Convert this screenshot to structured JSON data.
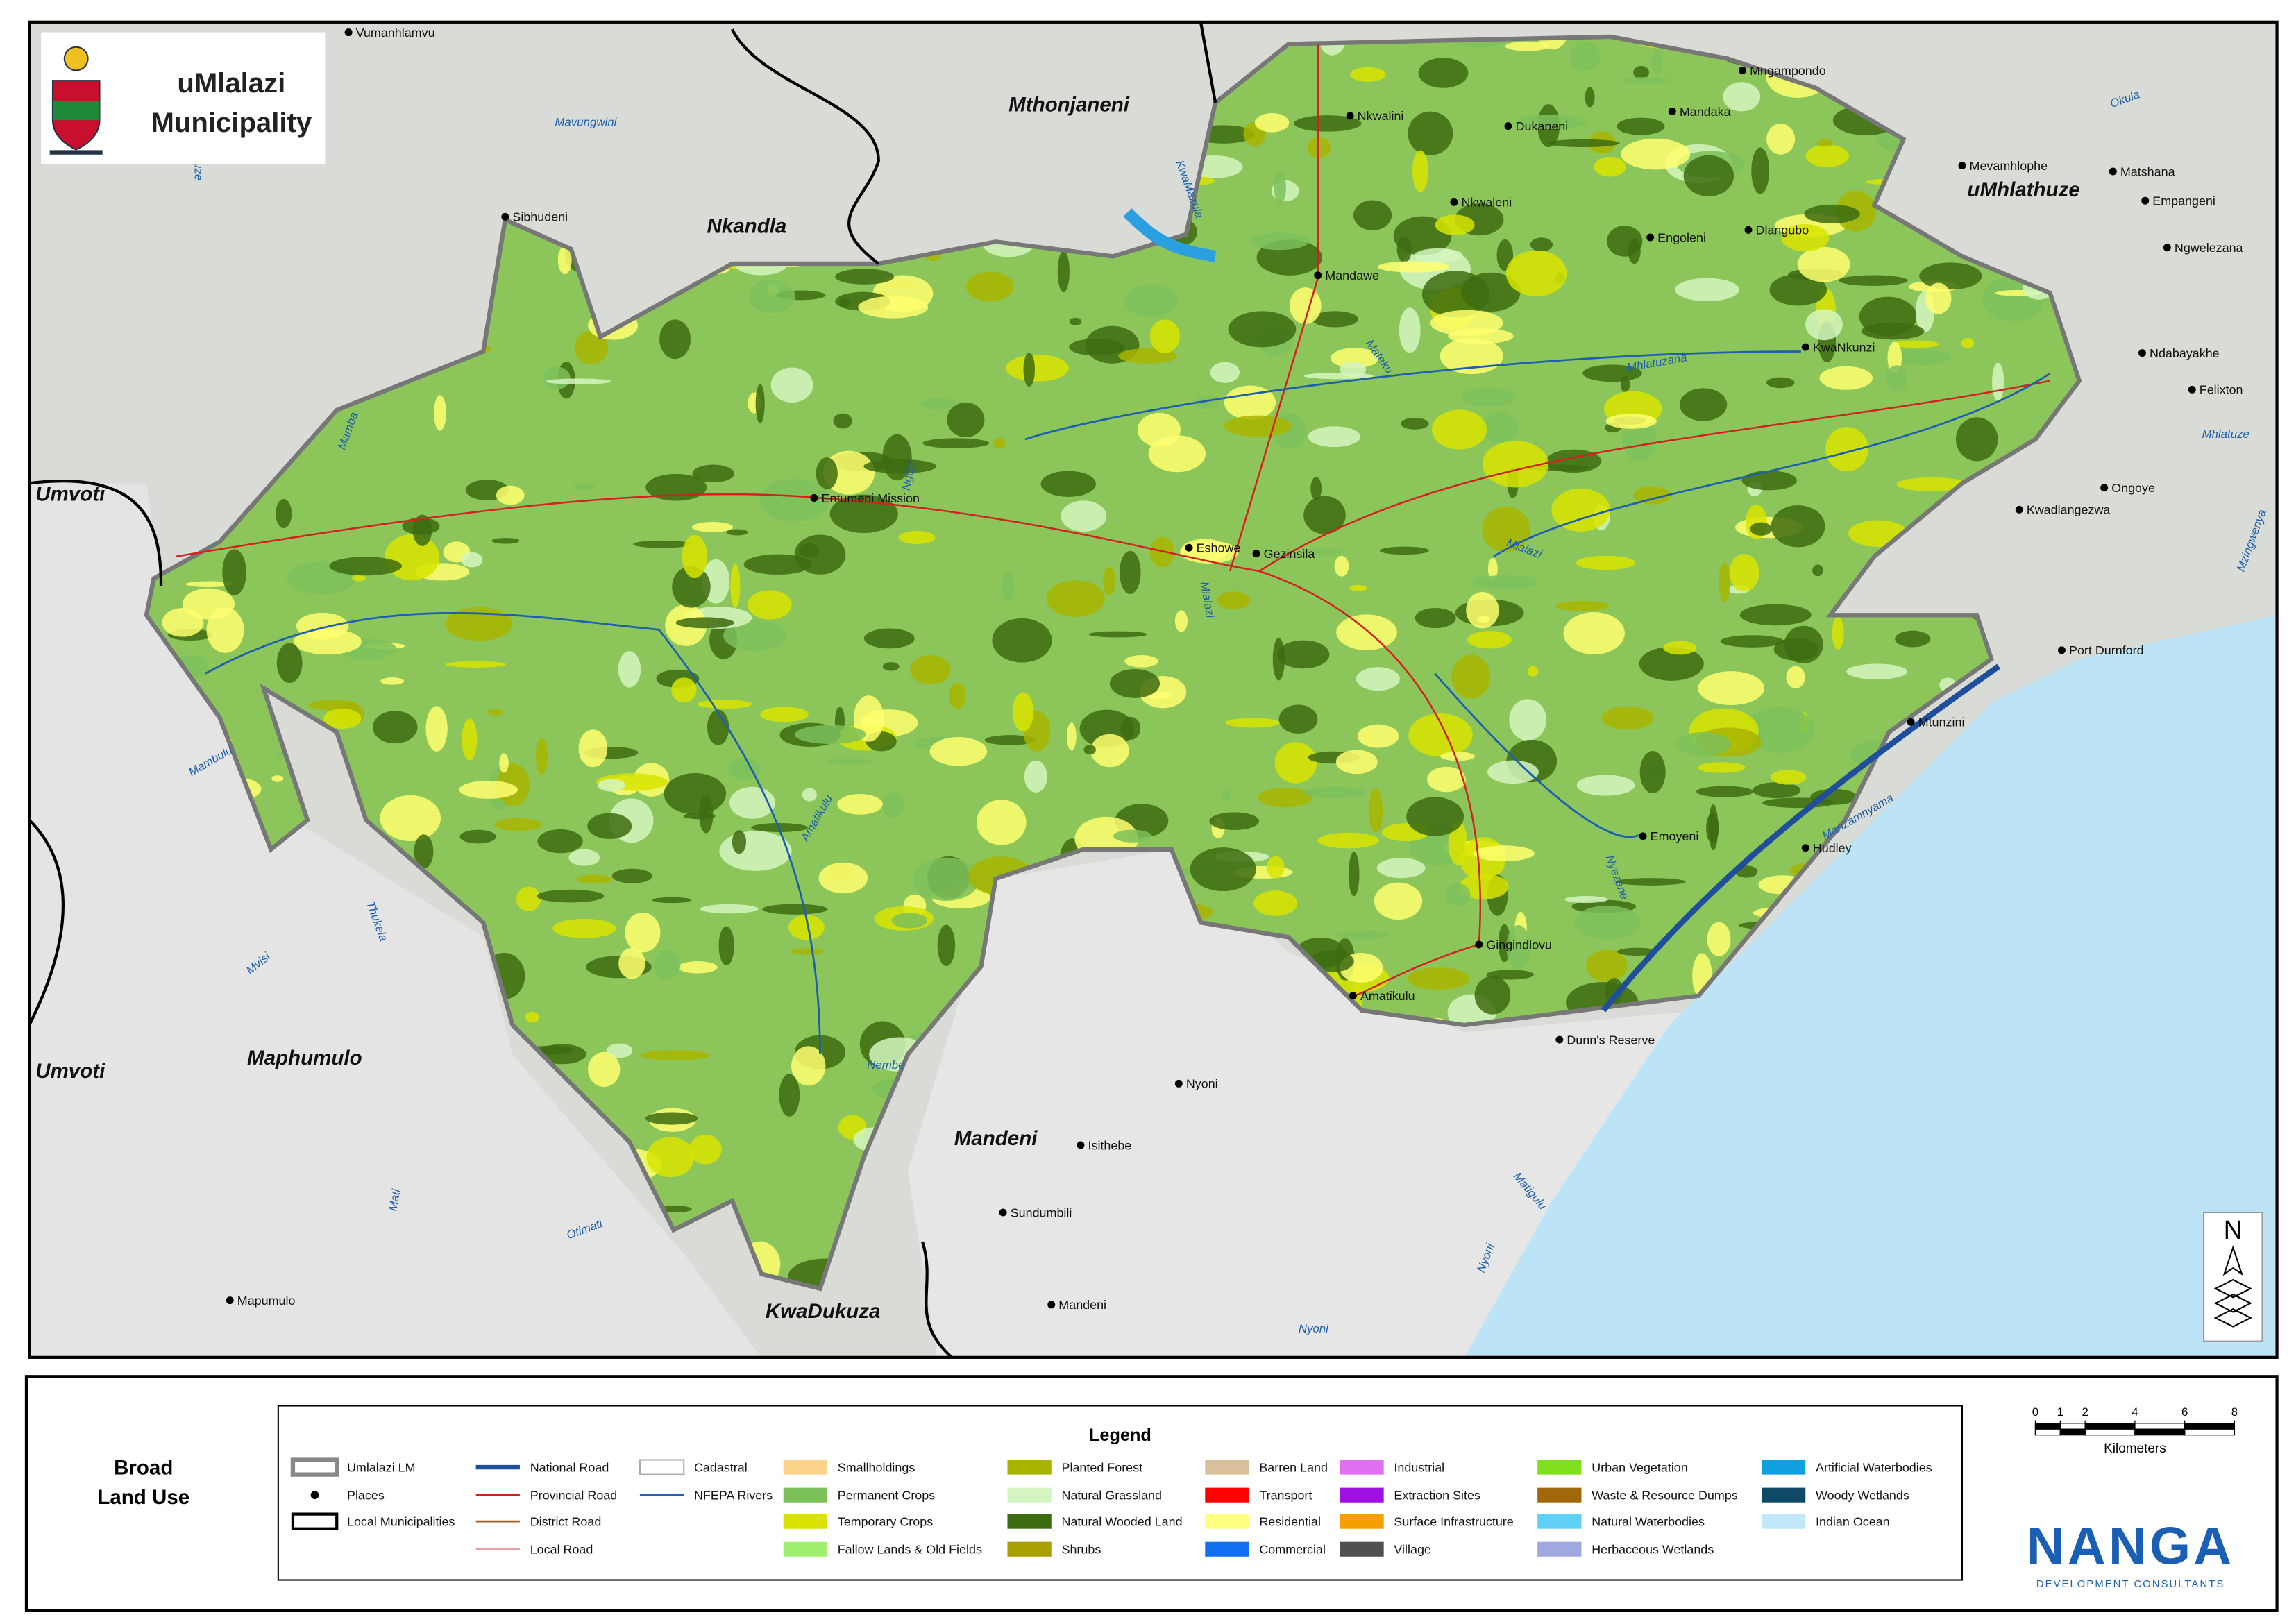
{
  "logo": {
    "title_line1": "uMlalazi",
    "title_line2": "Municipality"
  },
  "map": {
    "municipalities": [
      "Mthonjaneni",
      "Nkandla",
      "uMhlathuze",
      "Umvoti",
      "Umvoti",
      "Maphumulo",
      "Mandeni",
      "KwaDukuza"
    ],
    "places": [
      "Vumanhlamvu",
      "Sibhudeni",
      "Nkwalini",
      "Dukaneni",
      "Mandaka",
      "Mngampondo",
      "Mevamhlophe",
      "Matshana",
      "Empangeni",
      "Ngwelezana",
      "Nkwaleni",
      "Engoleni",
      "Dlangubo",
      "Mandawe",
      "KwaNkunzi",
      "Ndabayakhe",
      "Felixton",
      "Entumeni Mission",
      "Ongoye",
      "Kwadlangezwa",
      "Eshowe",
      "Gezinsila",
      "Port Durnford",
      "Mtunzini",
      "Emoyeni",
      "Hudley",
      "Gingindlovu",
      "Amatikulu",
      "Dunn's Reserve",
      "Nyoni",
      "Isithebe",
      "Sundumbili",
      "Mandeni",
      "Mapumulo"
    ],
    "rivers": [
      "Mavungwini",
      "Nsuze",
      "KwaMazula",
      "Okula",
      "Mateku",
      "Mhlatuzana",
      "Mhlatuze",
      "Mamba",
      "Ngoje",
      "Mlalazi",
      "Mlalazi",
      "Mzingwenya",
      "Mambulu",
      "Nyezane",
      "Manzamnyama",
      "Matigulu",
      "Nyoni",
      "Nyoni",
      "Otimati",
      "Mati",
      "Mvisi",
      "Thukela",
      "Nembe",
      "Amatikulu"
    ],
    "north": "N",
    "scale_bar": {
      "ticks": [
        0,
        1,
        2,
        4,
        6,
        8
      ],
      "unit": "Kilometers"
    }
  },
  "panel_title": [
    "Broad",
    "Land Use"
  ],
  "legend": {
    "title": "Legend",
    "items": [
      {
        "label": "Umlalazi LM",
        "symbol": "box-gray",
        "color": "#888888"
      },
      {
        "label": "Places",
        "symbol": "dot",
        "color": "#000000"
      },
      {
        "label": "Local Municipalities",
        "symbol": "box-black",
        "color": "#000000"
      },
      {
        "label": "National Road",
        "symbol": "line",
        "color": "#1f4e9c"
      },
      {
        "label": "Provincial Road",
        "symbol": "line",
        "color": "#d42020"
      },
      {
        "label": "District Road",
        "symbol": "line",
        "color": "#a06020"
      },
      {
        "label": "Local Road",
        "symbol": "line",
        "color": "#e8a0a0"
      },
      {
        "label": "Cadastral",
        "symbol": "box-gray",
        "color": "#aaaaaa"
      },
      {
        "label": "NFEPA Rivers",
        "symbol": "line",
        "color": "#2060c0"
      },
      {
        "label": "Smallholdings",
        "symbol": "fill",
        "color": "#fcd38a"
      },
      {
        "label": "Permanent Crops",
        "symbol": "fill",
        "color": "#7cc05a"
      },
      {
        "label": "Temporary Crops",
        "symbol": "fill",
        "color": "#d8e400"
      },
      {
        "label": "Fallow Lands & Old Fields",
        "symbol": "fill",
        "color": "#a0f070"
      },
      {
        "label": "Planted Forest",
        "symbol": "fill",
        "color": "#a8b400"
      },
      {
        "label": "Natural Grassland",
        "symbol": "fill",
        "color": "#d4f5c0"
      },
      {
        "label": "Natural Wooded Land",
        "symbol": "fill",
        "color": "#3d6b10"
      },
      {
        "label": "Shrubs",
        "symbol": "fill",
        "color": "#a8a000"
      },
      {
        "label": "Barren Land",
        "symbol": "fill",
        "color": "#d8c09a"
      },
      {
        "label": "Transport",
        "symbol": "fill",
        "color": "#ff0000"
      },
      {
        "label": "Residential",
        "symbol": "fill",
        "color": "#ffff80"
      },
      {
        "label": "Commercial",
        "symbol": "fill",
        "color": "#1070f0"
      },
      {
        "label": "Industrial",
        "symbol": "fill",
        "color": "#e070f0"
      },
      {
        "label": "Extraction Sites",
        "symbol": "fill",
        "color": "#a010e0"
      },
      {
        "label": "Surface Infrastructure",
        "symbol": "fill",
        "color": "#f5a000"
      },
      {
        "label": "Village",
        "symbol": "fill",
        "color": "#505050"
      },
      {
        "label": "Urban Vegetation",
        "symbol": "fill",
        "color": "#80e020"
      },
      {
        "label": "Waste & Resource Dumps",
        "symbol": "fill",
        "color": "#a06808"
      },
      {
        "label": "Natural Waterbodies",
        "symbol": "fill",
        "color": "#60d0f8"
      },
      {
        "label": "Herbaceous Wetlands",
        "symbol": "fill",
        "color": "#a0a8e0"
      },
      {
        "label": "Artificial Waterbodies",
        "symbol": "fill",
        "color": "#10a0e0"
      },
      {
        "label": "Woody Wetlands",
        "symbol": "fill",
        "color": "#104868"
      },
      {
        "label": "Indian Ocean",
        "symbol": "fill",
        "color": "#c0e8f8"
      }
    ]
  },
  "brand": {
    "name": "NANGA",
    "tagline": "DEVELOPMENT CONSULTANTS"
  }
}
